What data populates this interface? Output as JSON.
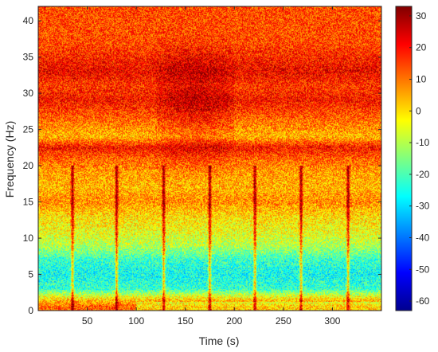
{
  "chart_data": {
    "type": "heatmap",
    "title": "",
    "xlabel": "Time (s)",
    "ylabel": "Frequency (Hz)",
    "xlim": [
      0,
      350
    ],
    "ylim": [
      0,
      42
    ],
    "x_ticks": [
      50,
      100,
      150,
      200,
      250,
      300
    ],
    "x_tick_labels": [
      "50",
      "100",
      "150",
      "200",
      "250",
      "300"
    ],
    "y_ticks": [
      0,
      5,
      10,
      15,
      20,
      25,
      30,
      35,
      40
    ],
    "y_tick_labels": [
      "0",
      "5",
      "10",
      "15",
      "20",
      "25",
      "30",
      "35",
      "40"
    ],
    "colormap": "jet",
    "colorbar": {
      "range": [
        -63,
        33
      ],
      "ticks": [
        30,
        20,
        10,
        0,
        -10,
        -20,
        -30,
        -40,
        -50,
        -60
      ],
      "tick_labels": [
        "30",
        "20",
        "10",
        "0",
        "-10",
        "-20",
        "-30",
        "-40",
        "-50",
        "-60"
      ]
    },
    "background_level_by_frequency": [
      {
        "frequency": 0.5,
        "level": 12
      },
      {
        "frequency": 1.5,
        "level": 2
      },
      {
        "frequency": 3,
        "level": -22
      },
      {
        "frequency": 5,
        "level": -26
      },
      {
        "frequency": 7,
        "level": -22
      },
      {
        "frequency": 9,
        "level": -10
      },
      {
        "frequency": 11,
        "level": -4
      },
      {
        "frequency": 13,
        "level": 0
      },
      {
        "frequency": 15,
        "level": 8
      },
      {
        "frequency": 17,
        "level": 4
      },
      {
        "frequency": 19,
        "level": 6
      },
      {
        "frequency": 21,
        "level": 12
      },
      {
        "frequency": 22.5,
        "level": 20
      },
      {
        "frequency": 24,
        "level": 4
      },
      {
        "frequency": 26,
        "level": 10
      },
      {
        "frequency": 29,
        "level": 20
      },
      {
        "frequency": 31,
        "level": 16
      },
      {
        "frequency": 33,
        "level": 22
      },
      {
        "frequency": 35,
        "level": 18
      },
      {
        "frequency": 37,
        "level": 14
      },
      {
        "frequency": 40,
        "level": 14
      }
    ],
    "broadband_events_time_s": [
      35,
      80,
      128,
      175,
      221,
      268,
      316
    ],
    "intense_region": {
      "time_range": [
        120,
        200
      ],
      "frequency_range": [
        18,
        38
      ],
      "peak_level": 30
    }
  }
}
